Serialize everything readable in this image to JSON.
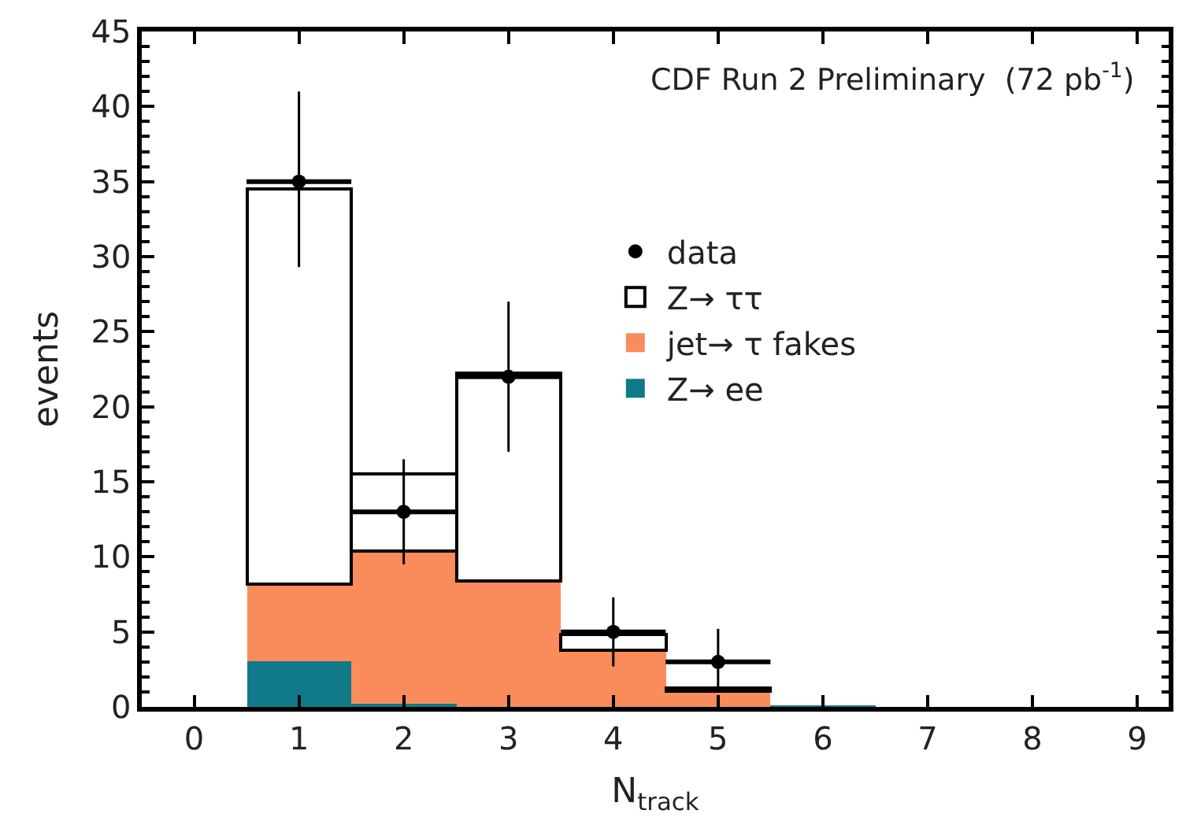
{
  "chart_data": {
    "type": "bar",
    "stacked": true,
    "xlabel": "N$_{track}$",
    "ylabel": "events",
    "annotations": [
      "CDF Run 2 Preliminary  (72 pb$^{-1}$)"
    ],
    "x": [
      1,
      2,
      3,
      4,
      5,
      6
    ],
    "series": [
      {
        "name": "Z→ ee",
        "color": "#0f7a8a",
        "values": [
          3.0,
          0.2,
          0,
          0,
          0,
          0.1
        ]
      },
      {
        "name": "jet→ τ fakes",
        "color": "#f98c5a",
        "values": [
          5.2,
          10.2,
          8.4,
          3.8,
          1.0,
          null
        ]
      },
      {
        "name": "Z→ ττ",
        "color": "#ffffff",
        "values": [
          26.3,
          5.1,
          13.8,
          1.0,
          0.3,
          null
        ]
      },
      {
        "name": "data",
        "type": "scatter",
        "color": "#000000",
        "marker": "circle",
        "x": [
          1,
          2,
          3,
          4,
          5
        ],
        "values": [
          35,
          13,
          22,
          5,
          3
        ],
        "errors": [
          [
            29.3,
            41
          ],
          [
            9.5,
            16.5
          ],
          [
            17,
            27
          ],
          [
            2.7,
            7.3
          ],
          [
            1.2,
            5.2
          ]
        ],
        "xerrors": [
          0.5,
          0.5,
          0.5,
          0.5,
          0.5
        ]
      }
    ],
    "xlim": [
      -0.5,
      9.3
    ],
    "xticks": [
      0,
      1,
      2,
      3,
      4,
      5,
      6,
      7,
      8,
      9
    ],
    "ylim": [
      0,
      45
    ],
    "yticks": [
      0,
      5,
      10,
      15,
      20,
      25,
      30,
      35,
      40,
      45
    ],
    "legend": "right"
  }
}
